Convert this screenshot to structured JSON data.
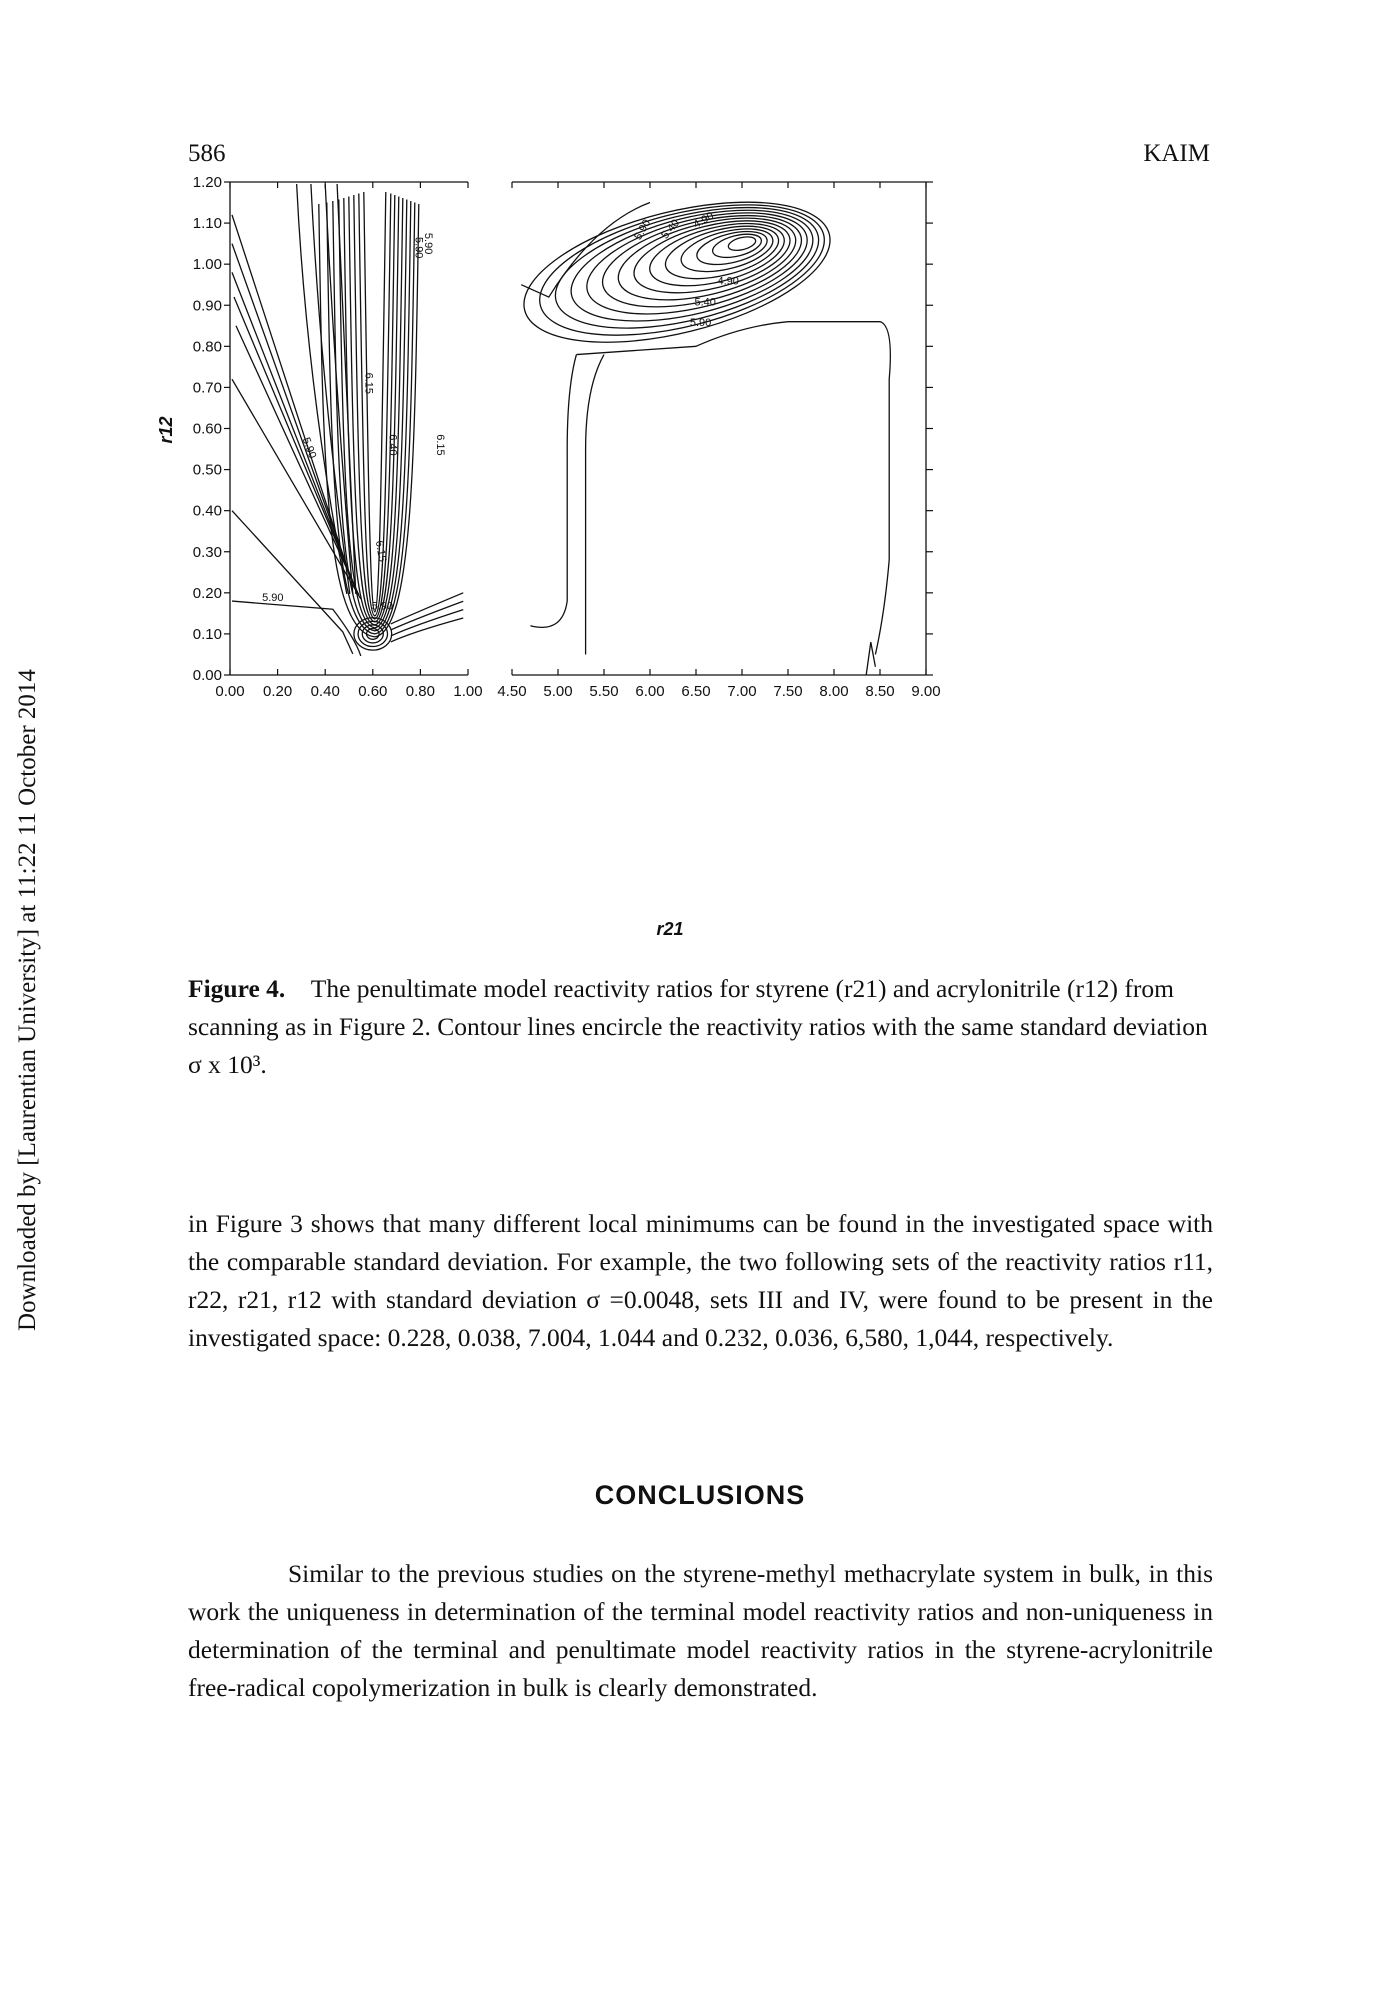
{
  "header": {
    "page_number": "586",
    "running_title": "KAIM"
  },
  "side_note": "Downloaded by [Laurentian University] at 11:22 11 October 2014",
  "figure": {
    "caption_label": "Figure 4.",
    "caption_text": "The penultimate model reactivity ratios for styrene (r21) and acrylonitrile (r12) from scanning as in Figure 2. Contour lines encircle the reactivity ratios with the same standard deviation σ x 10³.",
    "x_axis_label": "r21",
    "y_axis_label": "r12",
    "y_ticks": [
      "1.20",
      "1.10",
      "1.00",
      "0.90",
      "0.80",
      "0.70",
      "0.60",
      "0.50",
      "0.40",
      "0.30",
      "0.20",
      "0.10",
      "0.00"
    ],
    "x_ticks_left": [
      "0.00",
      "0.20",
      "0.40",
      "0.60",
      "0.80",
      "1.00"
    ],
    "x_ticks_right": [
      "4.50",
      "5.00",
      "5.50",
      "6.00",
      "6.50",
      "7.00",
      "7.50",
      "8.00",
      "8.50",
      "9.00"
    ],
    "contour_labels_left": [
      "5.90",
      "6.15",
      "5.90",
      "6.15",
      "5.90",
      "6.15",
      "5.90",
      "6.40",
      "5.90"
    ],
    "contour_labels_right": [
      "5.90",
      "5.40",
      "4.90",
      "4.90",
      "5.40",
      "5.90"
    ]
  },
  "chart_data": {
    "type": "contour",
    "title": "",
    "xlabel": "r21",
    "ylabel": "r12",
    "ylim": [
      0.0,
      1.2
    ],
    "panels": [
      {
        "name": "left panel",
        "xlim": [
          0.0,
          1.0
        ],
        "local_minimum_near": {
          "r21": 0.6,
          "r12": 0.1
        },
        "contour_levels_labeled": [
          5.9,
          6.15,
          6.4
        ]
      },
      {
        "name": "right panel",
        "xlim": [
          4.5,
          9.0
        ],
        "local_minimum_near": {
          "r21": 7.0,
          "r12": 1.05
        },
        "contour_levels_labeled": [
          4.9,
          5.4,
          5.9
        ]
      }
    ]
  },
  "body": {
    "para1": "in Figure 3 shows that many different local minimums can be found in the investigated space with the comparable standard deviation. For example, the two following sets of the reactivity ratios r11, r22, r21, r12 with standard deviation σ =0.0048, sets III and IV, were found to be present in the investigated space: 0.228, 0.038, 7.004, 1.044 and 0.232, 0.036, 6,580, 1,044, respectively.",
    "conclusions_heading": "CONCLUSIONS",
    "para2": "Similar to the previous studies on the styrene-methyl methacrylate system in bulk, in this work the uniqueness in determination of the terminal model reactivity ratios and non-uniqueness in determination of the terminal and penultimate model reactivity ratios in the styrene-acrylonitrile free-radical copolymerization in bulk is clearly demonstrated."
  }
}
